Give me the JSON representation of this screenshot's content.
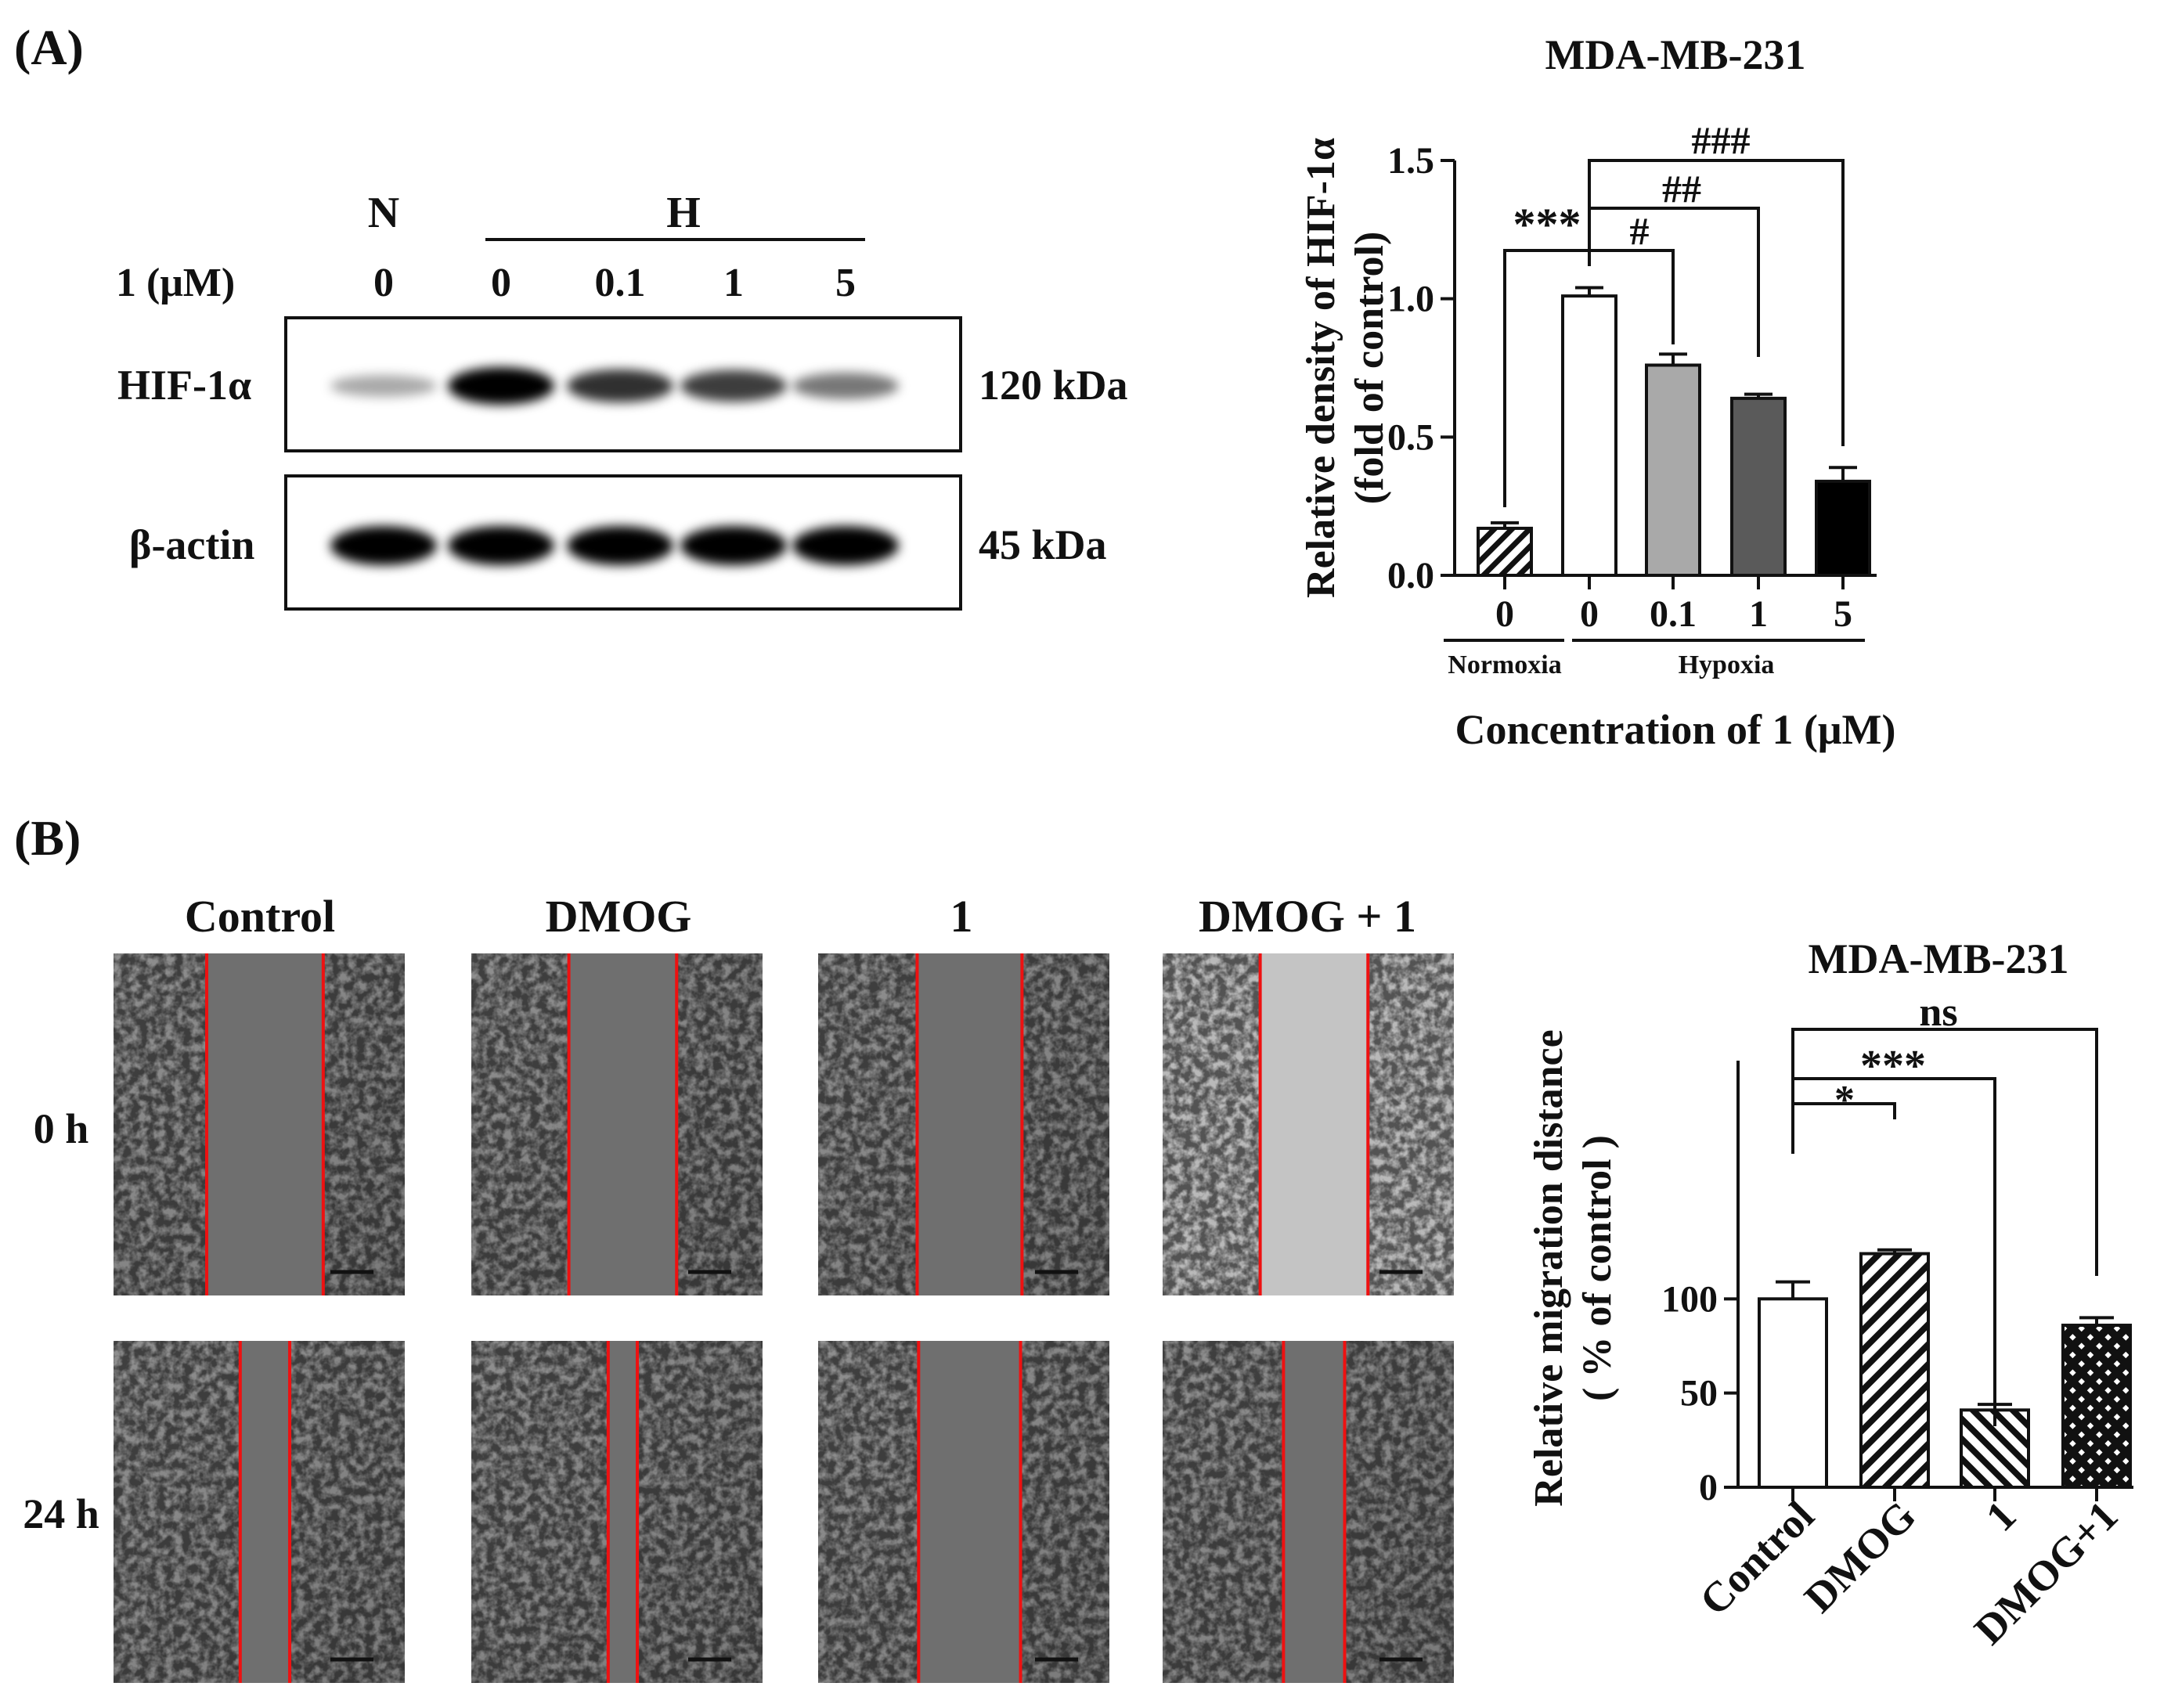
{
  "panelA": {
    "label": "(A)",
    "blot": {
      "group_normoxia": "N",
      "group_hypoxia": "H",
      "conc_label": "1 (μM)",
      "lanes": [
        "0",
        "0",
        "0.1",
        "1",
        "5"
      ],
      "rows": [
        {
          "name": "HIF-1α",
          "size": "120 kDa",
          "intensities": [
            0.22,
            1.0,
            0.78,
            0.72,
            0.45
          ]
        },
        {
          "name": "β-actin",
          "size": "45 kDa",
          "intensities": [
            1.0,
            1.0,
            1.0,
            1.0,
            1.0
          ]
        }
      ]
    }
  },
  "panelB": {
    "label": "(B)",
    "columns": [
      "Control",
      "DMOG",
      "1",
      "DMOG + 1"
    ],
    "rows": [
      "0 h",
      "24 h"
    ],
    "wound_gaps": [
      [
        0.4,
        0.37,
        0.36,
        0.37
      ],
      [
        0.17,
        0.1,
        0.35,
        0.21
      ]
    ]
  },
  "chart_data": [
    {
      "type": "bar",
      "title": "MDA-MB-231",
      "ylabel": [
        "Relative density of HIF-1α",
        "(fold of control)"
      ],
      "xlabel": "Concentration of 1 (μM)",
      "categories": [
        "0",
        "0",
        "0.1",
        "1",
        "5"
      ],
      "values": [
        0.17,
        1.01,
        0.76,
        0.64,
        0.34
      ],
      "errors": [
        0.02,
        0.03,
        0.04,
        0.015,
        0.05
      ],
      "fills": [
        "hatch",
        "#ffffff",
        "#a9a9a9",
        "#5a5a5a",
        "#000000"
      ],
      "ylim": [
        0,
        1.5
      ],
      "yticks": [
        "0.0",
        "0.5",
        "1.0",
        "1.5"
      ],
      "group_labels": [
        {
          "label": "Normoxia",
          "members": [
            0
          ]
        },
        {
          "label": "Hypoxia",
          "members": [
            1,
            2,
            3,
            4
          ]
        }
      ],
      "significance": [
        {
          "from": 0,
          "to": 1,
          "label": "***"
        },
        {
          "from": 1,
          "to": 2,
          "label": "#"
        },
        {
          "from": 1,
          "to": 3,
          "label": "##"
        },
        {
          "from": 1,
          "to": 4,
          "label": "###"
        }
      ]
    },
    {
      "type": "bar",
      "title": "MDA-MB-231",
      "ylabel": [
        "Relative migration distance",
        "( % of control )"
      ],
      "categories": [
        "Control",
        "DMOG",
        "1",
        "DMOG+1"
      ],
      "values": [
        100,
        124,
        41,
        86
      ],
      "errors": [
        9,
        2,
        3,
        4
      ],
      "fills": [
        "#ffffff",
        "hatch-diag",
        "hatch-rev",
        "crosshatch"
      ],
      "ylim": [
        0,
        150
      ],
      "yticks": [
        "0",
        "50",
        "100"
      ],
      "significance": [
        {
          "from": 0,
          "to": 1,
          "label": "*"
        },
        {
          "from": 0,
          "to": 2,
          "label": "***"
        },
        {
          "from": 0,
          "to": 3,
          "label": "ns"
        }
      ]
    }
  ]
}
